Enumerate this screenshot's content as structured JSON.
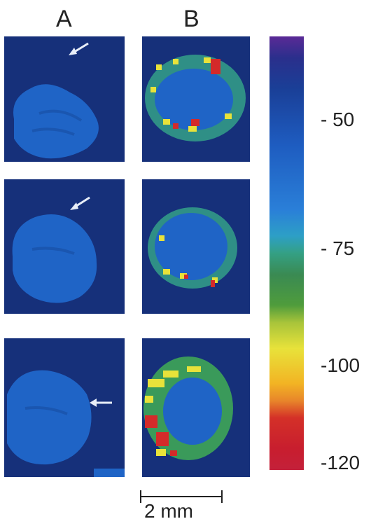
{
  "columns": {
    "a": "A",
    "b": "B"
  },
  "colorbar": {
    "ticks": [
      "- 50",
      "- 75",
      "-100",
      "-120"
    ],
    "colors": [
      "#5a2a96",
      "#1a3f97",
      "#2a7fd8",
      "#3a8a52",
      "#e8e23a",
      "#e8862a",
      "#c81e2e"
    ]
  },
  "scale_bar": {
    "label": "2 mm"
  }
}
